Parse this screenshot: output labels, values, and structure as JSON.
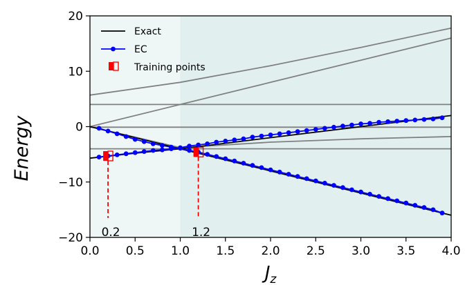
{
  "chart_data": {
    "type": "line",
    "xlabel_main": "J",
    "xlabel_sub": "z",
    "ylabel": "Energy",
    "xlim": [
      0,
      4
    ],
    "ylim": [
      -20,
      20
    ],
    "x_ticks": [
      0.0,
      0.5,
      1.0,
      1.5,
      2.0,
      2.5,
      3.0,
      3.5,
      4.0
    ],
    "x_tick_labels": [
      "0.0",
      "0.5",
      "1.0",
      "1.5",
      "2.0",
      "2.5",
      "3.0",
      "3.5",
      "4.0"
    ],
    "y_ticks": [
      -20,
      -10,
      0,
      10,
      20
    ],
    "y_tick_labels": [
      "−20",
      "−10",
      "0",
      "10",
      "20"
    ],
    "shaded_regions": [
      {
        "x_from": 0,
        "x_to": 1,
        "color": "#eef6f6"
      },
      {
        "x_from": 1,
        "x_to": 4,
        "color": "#e2efef"
      }
    ],
    "legend": {
      "placement": "top-left",
      "entries": [
        {
          "label": "Exact",
          "style": "line",
          "color": "#000000"
        },
        {
          "label": "EC",
          "style": "line-marker",
          "color": "#0000ff"
        },
        {
          "label": "Training points",
          "style": "square",
          "color": "#ff0000"
        }
      ]
    },
    "exact_series": [
      {
        "color": "#808080",
        "x": [
          0,
          4
        ],
        "y": [
          4.0,
          4.0
        ]
      },
      {
        "color": "#808080",
        "x": [
          0,
          4
        ],
        "y": [
          -4.0,
          -4.0
        ]
      },
      {
        "color": "#808080",
        "x": [
          0,
          4
        ],
        "y": [
          -0.1,
          -0.1
        ]
      },
      {
        "color": "#808080",
        "x": [
          0,
          1,
          2,
          3,
          4
        ],
        "y": [
          5.7,
          8.0,
          11.0,
          14.3,
          17.8
        ]
      },
      {
        "color": "#808080",
        "x": [
          0,
          1,
          2,
          3,
          4
        ],
        "y": [
          0,
          4.0,
          8.0,
          12.0,
          16.0
        ]
      },
      {
        "color": "#808080",
        "x": [
          0,
          0.5,
          1,
          1.5,
          2,
          2.5,
          3,
          3.5,
          4
        ],
        "y": [
          0,
          -1.9,
          -3.8,
          -3.3,
          -2.8,
          -2.5,
          -2.2,
          -2.0,
          -1.8
        ]
      },
      {
        "color": "#000000",
        "x": [
          0,
          0.5,
          1,
          1.5,
          2,
          2.5,
          3,
          3.5,
          4
        ],
        "y": [
          -5.7,
          -4.8,
          -4.0,
          -3.0,
          -2.0,
          -1.0,
          0.0,
          1.0,
          2.0
        ]
      },
      {
        "color": "#000000",
        "x": [
          0,
          0.5,
          1,
          1.5,
          2,
          2.5,
          3,
          3.5,
          4
        ],
        "y": [
          0,
          -2.0,
          -4.0,
          -6.0,
          -8.0,
          -10.0,
          -12.0,
          -14.0,
          -16.0
        ]
      }
    ],
    "ec_series": [
      {
        "name": "EC",
        "color": "#0000ff",
        "x": [
          0.1,
          0.2,
          0.3,
          0.4,
          0.5,
          0.6,
          0.7,
          0.8,
          0.9,
          1.0,
          1.1,
          1.2,
          1.3,
          1.4,
          1.5,
          1.6,
          1.7,
          1.8,
          1.9,
          2.0,
          2.1,
          2.2,
          2.3,
          2.4,
          2.5,
          2.6,
          2.7,
          2.8,
          2.9,
          3.0,
          3.1,
          3.2,
          3.3,
          3.4,
          3.5,
          3.6,
          3.7,
          3.8,
          3.9
        ],
        "y": [
          -5.5,
          -5.3,
          -5.1,
          -4.9,
          -4.7,
          -4.5,
          -4.3,
          -4.2,
          -4.0,
          -3.8,
          -3.5,
          -3.3,
          -3.1,
          -2.8,
          -2.6,
          -2.4,
          -2.2,
          -1.9,
          -1.7,
          -1.5,
          -1.3,
          -1.1,
          -0.9,
          -0.7,
          -0.5,
          -0.3,
          -0.1,
          0.1,
          0.3,
          0.5,
          0.6,
          0.8,
          0.9,
          1.0,
          1.1,
          1.2,
          1.3,
          1.4,
          1.6
        ]
      },
      {
        "name": "EC",
        "color": "#0000ff",
        "x": [
          0.1,
          0.2,
          0.3,
          0.4,
          0.5,
          0.6,
          0.7,
          0.8,
          0.9,
          1.0,
          1.1,
          1.2,
          1.3,
          1.4,
          1.5,
          1.6,
          1.7,
          1.8,
          1.9,
          2.0,
          2.1,
          2.2,
          2.3,
          2.4,
          2.5,
          2.6,
          2.7,
          2.8,
          2.9,
          3.0,
          3.1,
          3.2,
          3.3,
          3.4,
          3.5,
          3.6,
          3.7,
          3.8,
          3.9
        ],
        "y": [
          -0.3,
          -0.8,
          -1.3,
          -1.8,
          -2.3,
          -2.7,
          -3.1,
          -3.4,
          -3.7,
          -3.9,
          -4.3,
          -4.6,
          -5.0,
          -5.4,
          -5.8,
          -6.2,
          -6.6,
          -7.0,
          -7.4,
          -7.8,
          -8.2,
          -8.6,
          -9.0,
          -9.4,
          -9.8,
          -10.2,
          -10.6,
          -11.0,
          -11.4,
          -11.8,
          -12.2,
          -12.6,
          -13.0,
          -13.4,
          -13.8,
          -14.2,
          -14.6,
          -15.0,
          -15.6
        ]
      }
    ],
    "training_points": [
      {
        "x": 0.2,
        "y": -5.3,
        "label": "0.2"
      },
      {
        "x": 1.2,
        "y": -4.6,
        "label": "1.2"
      }
    ],
    "training_drop_to_y": -16.5
  }
}
